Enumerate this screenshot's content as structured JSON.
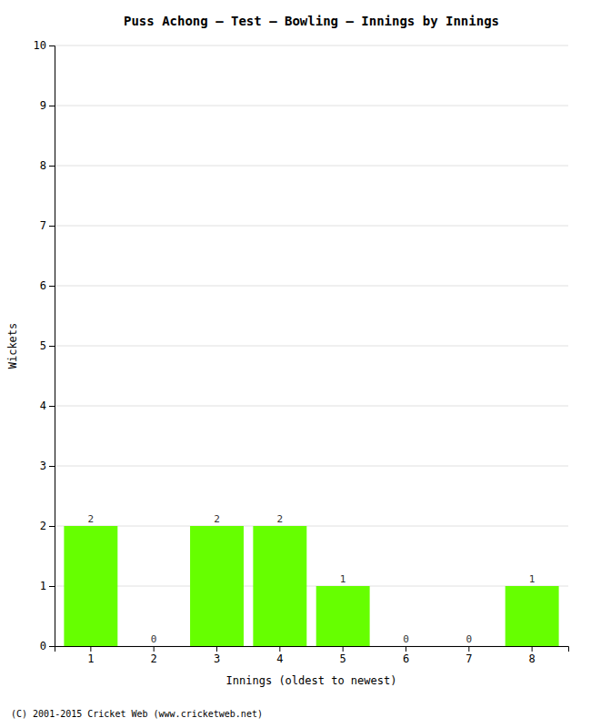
{
  "chart_data": {
    "type": "bar",
    "title": "Puss Achong – Test – Bowling – Innings by Innings",
    "x_label": "Innings (oldest to newest)",
    "y_label": "Wickets",
    "categories": [
      1,
      2,
      3,
      4,
      5,
      6,
      7,
      8
    ],
    "values": [
      2,
      0,
      2,
      2,
      1,
      0,
      0,
      1
    ],
    "color": "#66ff00",
    "ylim": [
      0,
      10
    ],
    "yticks": [
      0,
      1,
      2,
      3,
      4,
      5,
      6,
      7,
      8,
      9,
      10
    ],
    "grid": true,
    "data_labels": true,
    "annotations": [
      "(C) 2001-2015 Cricket Web (www.cricketweb.net)"
    ]
  }
}
